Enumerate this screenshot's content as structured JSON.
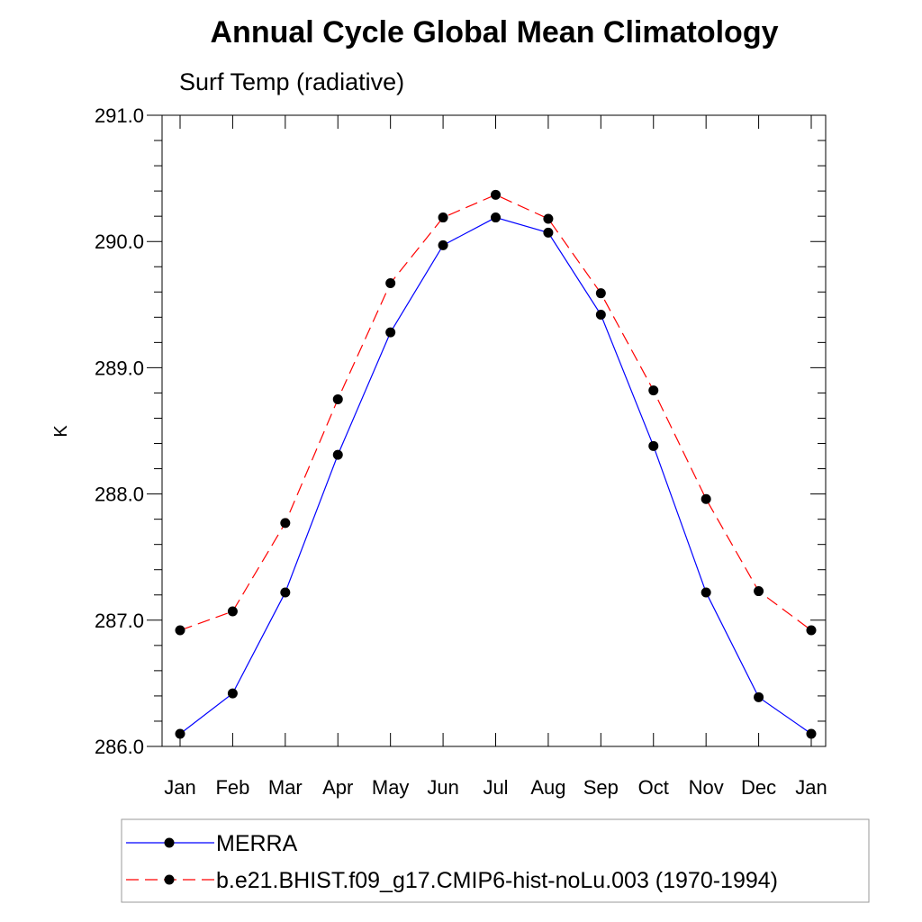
{
  "chart_data": {
    "type": "line",
    "title": "Annual Cycle Global Mean Climatology",
    "subtitle": "Surf Temp (radiative)",
    "xlabel": "",
    "ylabel": "K",
    "categories": [
      "Jan",
      "Feb",
      "Mar",
      "Apr",
      "May",
      "Jun",
      "Jul",
      "Aug",
      "Sep",
      "Oct",
      "Nov",
      "Dec",
      "Jan"
    ],
    "ylim": [
      286.0,
      291.0
    ],
    "yticks": [
      "286.0",
      "287.0",
      "288.0",
      "289.0",
      "290.0",
      "291.0"
    ],
    "grid": false,
    "legend_position": "bottom",
    "series": [
      {
        "name": "MERRA",
        "color": "#0000ff",
        "line_style": "solid",
        "marker": "filled-circle",
        "values": [
          286.1,
          286.42,
          287.22,
          288.31,
          289.28,
          289.97,
          290.19,
          290.07,
          289.42,
          288.38,
          287.22,
          286.39,
          286.1
        ]
      },
      {
        "name": "b.e21.BHIST.f09_g17.CMIP6-hist-noLu.003 (1970-1994)",
        "color": "#ff0000",
        "line_style": "dashed",
        "marker": "filled-circle",
        "values": [
          286.92,
          287.07,
          287.77,
          288.75,
          289.67,
          290.19,
          290.37,
          290.18,
          289.59,
          288.82,
          287.96,
          287.23,
          286.92
        ]
      }
    ]
  }
}
